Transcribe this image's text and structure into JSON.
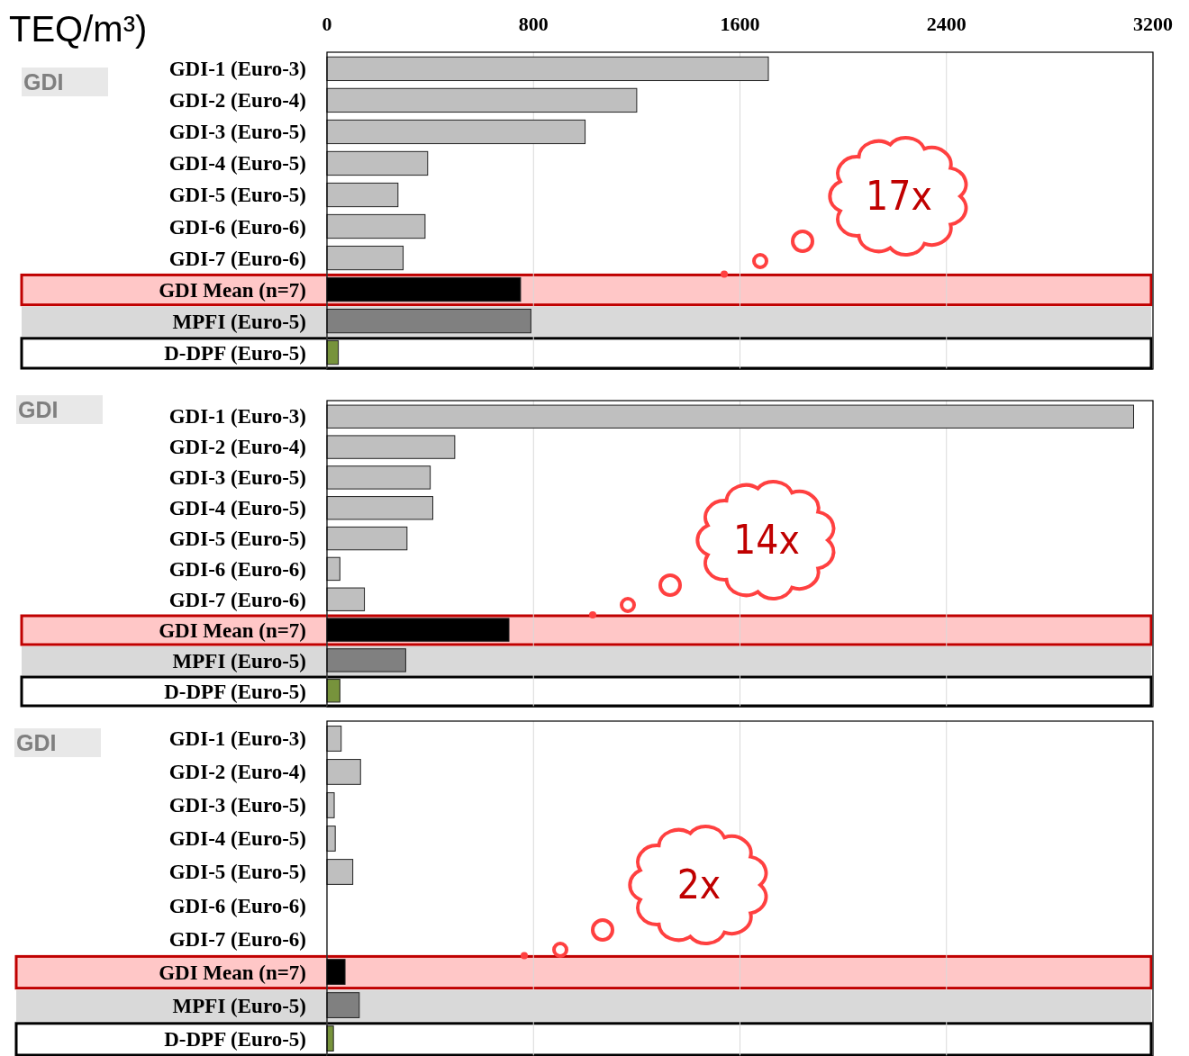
{
  "chart_data": [
    {
      "type": "bar",
      "orientation": "horizontal",
      "xlabel": "TEQ/m³)",
      "categories": [
        "GDI-1 (Euro-3)",
        "GDI-2 (Euro-4)",
        "GDI-3 (Euro-5)",
        "GDI-4 (Euro-5)",
        "GDI-5 (Euro-5)",
        "GDI-6 (Euro-6)",
        "GDI-7 (Euro-6)",
        "GDI Mean (n=7)",
        "MPFI (Euro-5)",
        "D-DPF (Euro-5)"
      ],
      "values": [
        1710,
        1200,
        1000,
        390,
        275,
        380,
        295,
        750,
        790,
        44
      ],
      "colors": [
        "#bfbfbf",
        "#bfbfbf",
        "#bfbfbf",
        "#bfbfbf",
        "#bfbfbf",
        "#bfbfbf",
        "#bfbfbf",
        "#000000",
        "#808080",
        "#77933c"
      ],
      "xlim": [
        0,
        3200
      ],
      "xticks": [
        0,
        800,
        1600,
        2400,
        3200
      ],
      "grid": "x",
      "bands": [
        {
          "axis": "y",
          "from": "GDI Mean (n=7)",
          "to": "GDI Mean (n=7)",
          "color": "#ffc7c7"
        },
        {
          "axis": "y",
          "from": "MPFI (Euro-5)",
          "to": "MPFI (Euro-5)",
          "color": "#d9d9d9"
        },
        {
          "axis": "y",
          "from": "D-DPF (Euro-5)",
          "to": "D-DPF (Euro-5)",
          "color": "#ffffff"
        }
      ],
      "annotations": [
        "GDI",
        "17x"
      ]
    },
    {
      "type": "bar",
      "orientation": "horizontal",
      "categories": [
        "GDI-1 (Euro-3)",
        "GDI-2 (Euro-4)",
        "GDI-3 (Euro-5)",
        "GDI-4 (Euro-5)",
        "GDI-5 (Euro-5)",
        "GDI-6 (Euro-6)",
        "GDI-7 (Euro-6)",
        "GDI Mean (n=7)",
        "MPFI (Euro-5)",
        "D-DPF (Euro-5)"
      ],
      "values": [
        3125,
        495,
        400,
        410,
        310,
        50,
        145,
        705,
        305,
        50
      ],
      "colors": [
        "#bfbfbf",
        "#bfbfbf",
        "#bfbfbf",
        "#bfbfbf",
        "#bfbfbf",
        "#bfbfbf",
        "#bfbfbf",
        "#000000",
        "#808080",
        "#77933c"
      ],
      "xlim": [
        0,
        3200
      ],
      "xticks": [
        0,
        800,
        1600,
        2400,
        3200
      ],
      "grid": "x",
      "tick_labels": "y",
      "bands": [
        {
          "axis": "y",
          "from": "GDI Mean (n=7)",
          "to": "GDI Mean (n=7)",
          "color": "#ffc7c7"
        },
        {
          "axis": "y",
          "from": "MPFI (Euro-5)",
          "to": "MPFI (Euro-5)",
          "color": "#d9d9d9"
        },
        {
          "axis": "y",
          "from": "D-DPF (Euro-5)",
          "to": "D-DPF (Euro-5)",
          "color": "#ffffff"
        }
      ],
      "annotations": [
        "GDI",
        "14x"
      ]
    },
    {
      "type": "bar",
      "orientation": "horizontal",
      "categories": [
        "GDI-1 (Euro-3)",
        "GDI-2 (Euro-4)",
        "GDI-3 (Euro-5)",
        "GDI-4 (Euro-5)",
        "GDI-5 (Euro-5)",
        "GDI-6 (Euro-6)",
        "GDI-7 (Euro-6)",
        "GDI Mean (n=7)",
        "MPFI (Euro-5)",
        "D-DPF (Euro-5)"
      ],
      "values": [
        55,
        130,
        28,
        32,
        100,
        null,
        null,
        70,
        125,
        25
      ],
      "colors": [
        "#bfbfbf",
        "#bfbfbf",
        "#bfbfbf",
        "#bfbfbf",
        "#bfbfbf",
        null,
        null,
        "#000000",
        "#808080",
        "#77933c"
      ],
      "xlim": [
        0,
        3200
      ],
      "xticks": [
        0,
        800,
        1600,
        2400,
        3200
      ],
      "grid": "x",
      "tick_labels": "y",
      "bands": [
        {
          "axis": "y",
          "from": "GDI Mean (n=7)",
          "to": "GDI Mean (n=7)",
          "color": "#ffc7c7"
        },
        {
          "axis": "y",
          "from": "MPFI (Euro-5)",
          "to": "MPFI (Euro-5)",
          "color": "#d9d9d9"
        },
        {
          "axis": "y",
          "from": "D-DPF (Euro-5)",
          "to": "D-DPF (Euro-5)",
          "color": "#ffffff"
        }
      ],
      "annotations": [
        "GDI",
        "2x"
      ]
    }
  ]
}
